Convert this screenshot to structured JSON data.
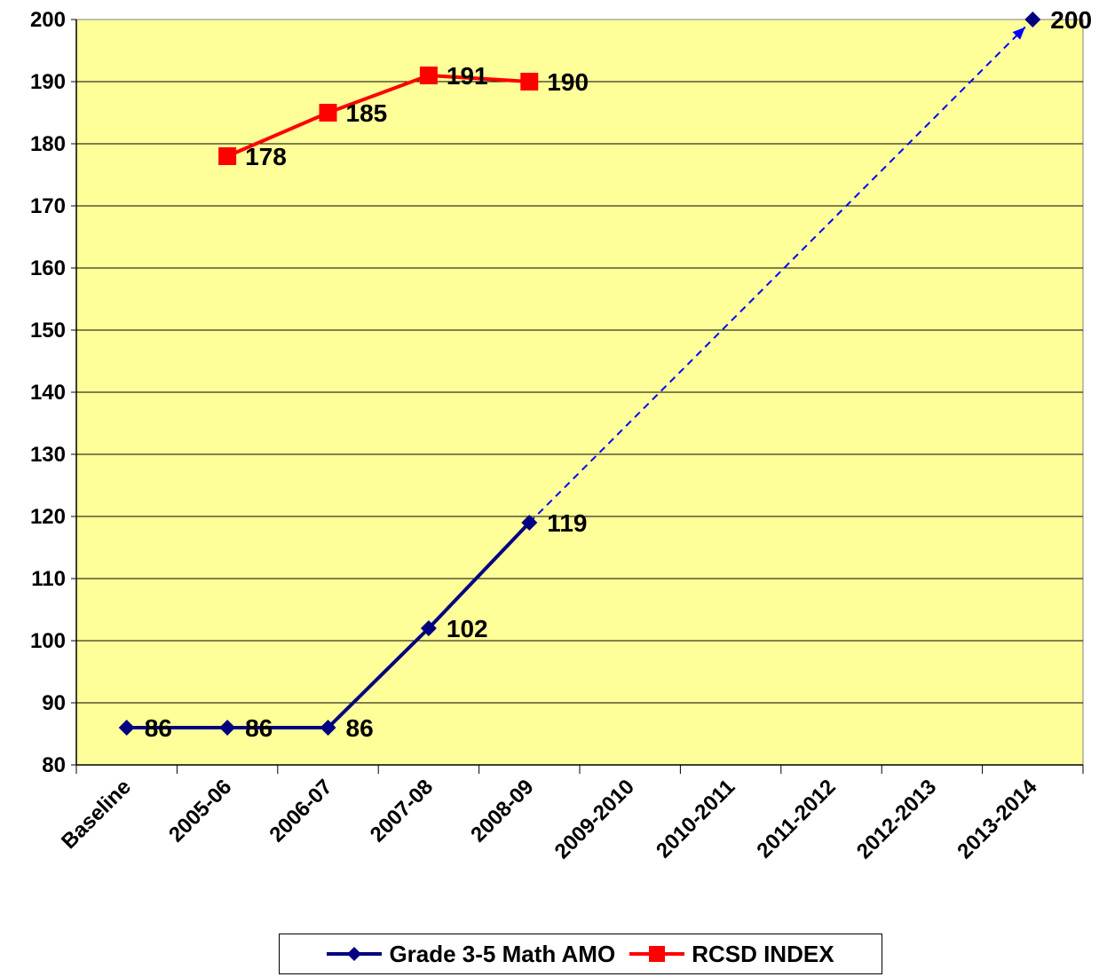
{
  "chart_data": {
    "type": "line",
    "categories": [
      "Baseline",
      "2005-06",
      "2006-07",
      "2007-08",
      "2008-09",
      "2009-2010",
      "2010-2011",
      "2011-2012",
      "2012-2013",
      "2013-2014"
    ],
    "ylim": [
      80,
      200
    ],
    "yticks": [
      80,
      90,
      100,
      110,
      120,
      130,
      140,
      150,
      160,
      170,
      180,
      190,
      200
    ],
    "grid": true,
    "plot_background": "#FFFF99",
    "legend_position": "bottom",
    "series": [
      {
        "name": "Grade 3-5 Math AMO",
        "color": "#000080",
        "marker": "diamond",
        "values": [
          86,
          86,
          86,
          102,
          119,
          null,
          null,
          null,
          null,
          200
        ],
        "labels": [
          "86",
          "86",
          "86",
          "102",
          "119",
          "",
          "",
          "",
          "",
          "200"
        ]
      },
      {
        "name": "RCSD INDEX",
        "color": "#FF0000",
        "marker": "square",
        "values": [
          null,
          178,
          185,
          191,
          190,
          null,
          null,
          null,
          null,
          null
        ],
        "labels": [
          "",
          "178",
          "185",
          "191",
          "190",
          "",
          "",
          "",
          "",
          ""
        ]
      }
    ],
    "trend_line": {
      "from": {
        "category": "2008-09",
        "value": 119
      },
      "to": {
        "category": "2013-2014",
        "value": 200
      },
      "color": "#0000FF",
      "style": "dashed"
    }
  }
}
